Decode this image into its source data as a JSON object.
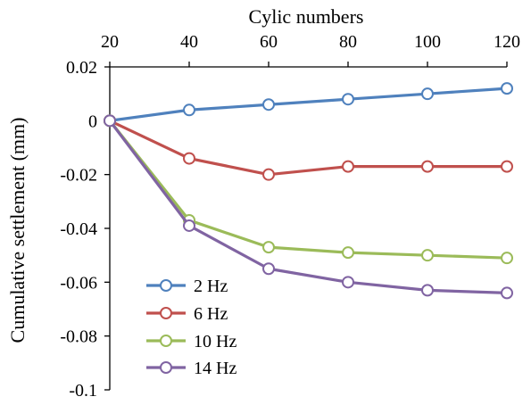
{
  "chart_data": {
    "type": "line",
    "title": "",
    "xlabel": "Cylic numbers",
    "ylabel": "Cumulative settlement (mm)",
    "x": [
      20,
      40,
      60,
      80,
      100,
      120
    ],
    "xlim": [
      20,
      120
    ],
    "ylim": [
      -0.1,
      0.02
    ],
    "x_axis_position": "top",
    "grid": false,
    "legend_position": "bottom-left",
    "marker": "open-circle",
    "x_ticks": [
      "20",
      "40",
      "60",
      "80",
      "100",
      "120"
    ],
    "y_ticks": [
      "0.02",
      "0",
      "-0.02",
      "-0.04",
      "-0.06",
      "-0.08",
      "-0.1"
    ],
    "y_tick_values": [
      0.02,
      0,
      -0.02,
      -0.04,
      -0.06,
      -0.08,
      -0.1
    ],
    "series": [
      {
        "name": "2 Hz",
        "color": "#4f81bd",
        "values": [
          0,
          0.004,
          0.006,
          0.008,
          0.01,
          0.012
        ]
      },
      {
        "name": "6 Hz",
        "color": "#c0504d",
        "values": [
          0,
          -0.014,
          -0.02,
          -0.017,
          -0.017,
          -0.017
        ]
      },
      {
        "name": "10 Hz",
        "color": "#9bbb59",
        "values": [
          0,
          -0.037,
          -0.047,
          -0.049,
          -0.05,
          -0.051
        ]
      },
      {
        "name": "14 Hz",
        "color": "#8064a2",
        "values": [
          0,
          -0.039,
          -0.055,
          -0.06,
          -0.063,
          -0.064
        ]
      }
    ]
  }
}
